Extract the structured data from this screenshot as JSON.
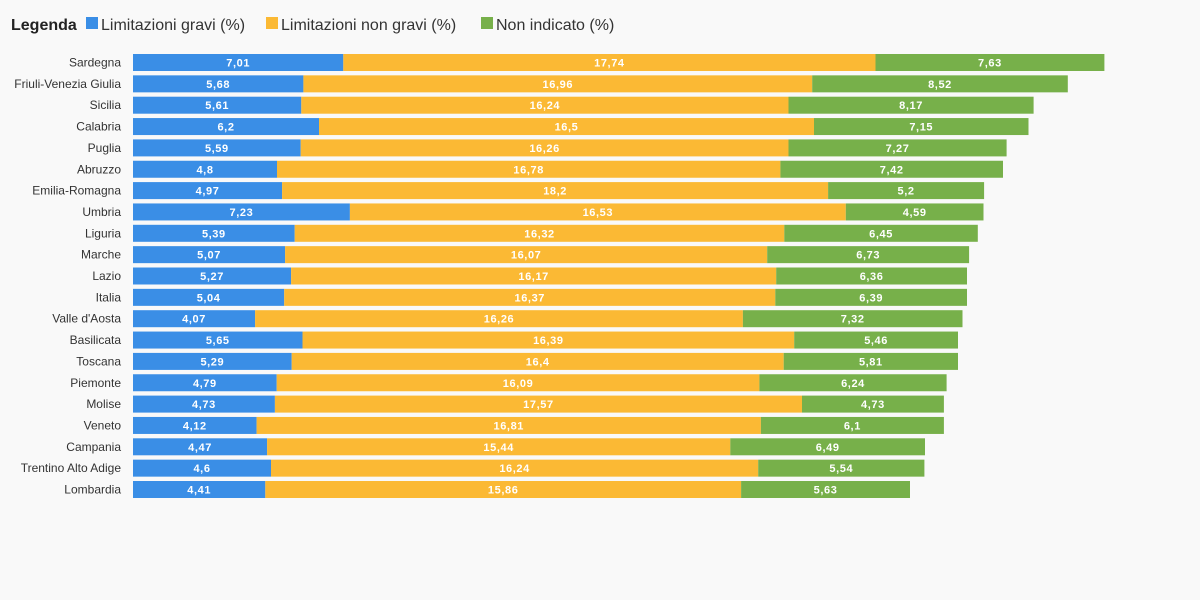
{
  "legend": {
    "title": "Legenda"
  },
  "chart_data": {
    "type": "bar",
    "orientation": "horizontal",
    "stacked": true,
    "title": "",
    "xlabel": "",
    "ylabel": "",
    "grid": false,
    "legend_position": "top-left",
    "categories": [
      "Sardegna",
      "Friuli-Venezia Giulia",
      "Sicilia",
      "Calabria",
      "Puglia",
      "Abruzzo",
      "Emilia-Romagna",
      "Umbria",
      "Liguria",
      "Marche",
      "Lazio",
      "Italia",
      "Valle d'Aosta",
      "Basilicata",
      "Toscana",
      "Piemonte",
      "Molise",
      "Veneto",
      "Campania",
      "Trentino Alto Adige",
      "Lombardia"
    ],
    "series": [
      {
        "name": "Limitazioni gravi (%)",
        "color": "#3a8ee6",
        "labels": [
          "7,01",
          "5,68",
          "5,61",
          "6,2",
          "5,59",
          "4,8",
          "4,97",
          "7,23",
          "5,39",
          "5,07",
          "5,27",
          "5,04",
          "4,07",
          "5,65",
          "5,29",
          "4,79",
          "4,73",
          "4,12",
          "4,47",
          "4,6",
          "4,41"
        ],
        "values": [
          7.01,
          5.68,
          5.61,
          6.2,
          5.59,
          4.8,
          4.97,
          7.23,
          5.39,
          5.07,
          5.27,
          5.04,
          4.07,
          5.65,
          5.29,
          4.79,
          4.73,
          4.12,
          4.47,
          4.6,
          4.41
        ]
      },
      {
        "name": "Limitazioni non gravi (%)",
        "color": "#fbb934",
        "labels": [
          "17,74",
          "16,96",
          "16,24",
          "16,5",
          "16,26",
          "16,78",
          "18,2",
          "16,53",
          "16,32",
          "16,07",
          "16,17",
          "16,37",
          "16,26",
          "16,39",
          "16,4",
          "16,09",
          "17,57",
          "16,81",
          "15,44",
          "16,24",
          "15,86"
        ],
        "values": [
          17.74,
          16.96,
          16.24,
          16.5,
          16.26,
          16.78,
          18.2,
          16.53,
          16.32,
          16.07,
          16.17,
          16.37,
          16.26,
          16.39,
          16.4,
          16.09,
          17.57,
          16.81,
          15.44,
          16.24,
          15.86
        ]
      },
      {
        "name": "Non indicato (%)",
        "color": "#77b04a",
        "labels": [
          "7,63",
          "8,52",
          "8,17",
          "7,15",
          "7,27",
          "7,42",
          "5,2",
          "4,59",
          "6,45",
          "6,73",
          "6,36",
          "6,39",
          "7,32",
          "5,46",
          "5,81",
          "6,24",
          "4,73",
          "6,1",
          "6,49",
          "5,54",
          "5,63"
        ],
        "values": [
          7.63,
          8.52,
          8.17,
          7.15,
          7.27,
          7.42,
          5.2,
          4.59,
          6.45,
          6.73,
          6.36,
          6.39,
          7.32,
          5.46,
          5.81,
          6.24,
          4.73,
          6.1,
          6.49,
          5.54,
          5.63
        ]
      }
    ]
  }
}
